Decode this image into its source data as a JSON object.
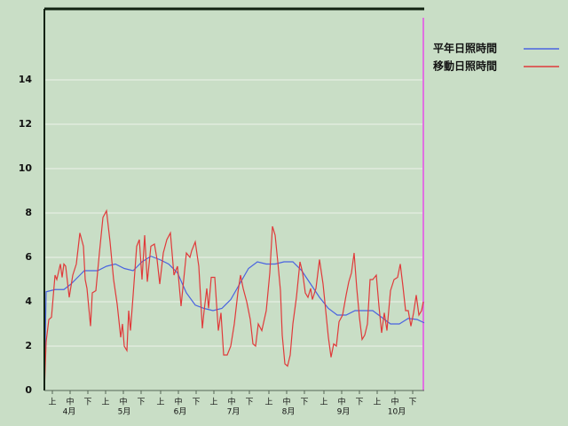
{
  "chart_data": {
    "type": "line",
    "xlim": [
      0,
      214
    ],
    "ylim": [
      0,
      17.2
    ],
    "yticks": [
      0,
      2,
      4,
      6,
      8,
      10,
      12,
      14
    ],
    "xticks": [
      {
        "value": 4.5,
        "label": "上"
      },
      {
        "value": 14.5,
        "label": "中"
      },
      {
        "value": 24.5,
        "label": "下"
      },
      {
        "value": 34.5,
        "label": "上"
      },
      {
        "value": 44.5,
        "label": "中"
      },
      {
        "value": 54.5,
        "label": "下"
      },
      {
        "value": 65.5,
        "label": "上"
      },
      {
        "value": 75.5,
        "label": "中"
      },
      {
        "value": 85.5,
        "label": "下"
      },
      {
        "value": 95.5,
        "label": "上"
      },
      {
        "value": 105.5,
        "label": "中"
      },
      {
        "value": 115.5,
        "label": "下"
      },
      {
        "value": 126.5,
        "label": "上"
      },
      {
        "value": 136.5,
        "label": "中"
      },
      {
        "value": 146.5,
        "label": "下"
      },
      {
        "value": 157.5,
        "label": "上"
      },
      {
        "value": 167.5,
        "label": "中"
      },
      {
        "value": 177.5,
        "label": "下"
      },
      {
        "value": 187.5,
        "label": "上"
      },
      {
        "value": 197.5,
        "label": "中"
      },
      {
        "value": 207.5,
        "label": "下"
      }
    ],
    "month_ticks": [
      {
        "value": 14,
        "label": "4月"
      },
      {
        "value": 45,
        "label": "5月"
      },
      {
        "value": 76.5,
        "label": "6月"
      },
      {
        "value": 106.5,
        "label": "7月"
      },
      {
        "value": 137.5,
        "label": "8月"
      },
      {
        "value": 168.5,
        "label": "9月"
      },
      {
        "value": 198.5,
        "label": "10月"
      }
    ],
    "grid": true,
    "legend": "right",
    "series": [
      {
        "name": "平年日照時間",
        "color": "#4a63e0",
        "x": [
          0,
          1,
          6,
          11,
          15,
          20,
          22.5,
          30,
          35,
          40,
          45,
          50,
          55,
          60,
          65,
          70,
          75,
          80,
          85,
          90,
          95,
          100,
          105,
          110,
          115,
          120,
          125,
          130,
          135,
          140,
          145,
          150,
          155,
          160,
          165,
          170,
          175,
          180,
          185,
          190,
          195,
          200,
          205,
          210,
          214
        ],
        "values": [
          0,
          4.45,
          4.55,
          4.55,
          4.8,
          5.2,
          5.4,
          5.4,
          5.6,
          5.7,
          5.5,
          5.4,
          5.8,
          6.05,
          5.9,
          5.7,
          5.3,
          4.4,
          3.85,
          3.7,
          3.6,
          3.7,
          4.1,
          4.8,
          5.5,
          5.8,
          5.7,
          5.7,
          5.8,
          5.8,
          5.4,
          4.8,
          4.2,
          3.7,
          3.4,
          3.4,
          3.6,
          3.6,
          3.6,
          3.3,
          3.0,
          3.0,
          3.25,
          3.2,
          3.05
        ]
      },
      {
        "name": "移動日照時間",
        "color": "#e03a3a",
        "x": [
          0,
          1,
          2.5,
          4,
          6,
          7,
          9,
          10,
          11,
          12,
          14,
          16,
          18,
          20,
          22,
          23,
          24,
          26,
          27,
          29,
          31,
          33,
          35,
          37,
          39,
          41,
          43,
          44,
          45,
          46.5,
          47.5,
          48.5,
          50,
          52,
          53.5,
          55,
          56.5,
          58,
          60,
          62,
          63.5,
          65,
          67,
          69,
          71,
          73,
          75,
          77,
          78,
          80,
          82,
          83,
          85,
          87,
          89,
          90,
          91.5,
          92.5,
          94,
          96,
          98,
          99.5,
          101,
          103,
          105,
          107,
          109,
          110.5,
          112,
          114,
          116,
          117.5,
          119,
          120.5,
          122.5,
          125,
          127,
          128.5,
          130,
          131.5,
          133,
          134,
          135.5,
          137,
          138.5,
          140,
          142,
          144,
          145.5,
          147,
          148.5,
          150,
          151,
          153,
          155,
          157,
          159,
          160,
          161.5,
          163,
          164.5,
          166,
          168,
          170,
          171.5,
          173,
          174.5,
          176,
          177.5,
          179,
          180.5,
          182,
          183.5,
          185,
          187,
          188.5,
          190,
          191.5,
          193,
          195,
          197,
          199,
          200.5,
          202,
          203.5,
          205,
          206.5,
          208,
          209.5,
          211,
          212.5,
          213.5
        ],
        "values": [
          0,
          2.2,
          3.2,
          3.3,
          5.2,
          5.0,
          5.7,
          5.1,
          5.7,
          5.6,
          4.2,
          5.2,
          5.7,
          7.1,
          6.5,
          5.0,
          4.6,
          2.9,
          4.4,
          4.5,
          6.2,
          7.8,
          8.1,
          6.7,
          5.0,
          3.9,
          2.4,
          3.0,
          2.0,
          1.8,
          3.6,
          2.7,
          4.3,
          6.5,
          6.8,
          5.0,
          7.0,
          4.9,
          6.5,
          6.6,
          5.9,
          4.8,
          6.2,
          6.8,
          7.1,
          5.2,
          5.6,
          3.8,
          4.6,
          6.2,
          6.0,
          6.3,
          6.7,
          5.6,
          2.8,
          3.6,
          4.6,
          3.7,
          5.1,
          5.1,
          2.7,
          3.5,
          1.6,
          1.6,
          2.0,
          3.0,
          4.4,
          5.2,
          4.6,
          4.0,
          3.2,
          2.1,
          2.0,
          3.0,
          2.7,
          3.6,
          5.3,
          7.4,
          7.0,
          5.8,
          4.5,
          2.5,
          1.2,
          1.1,
          1.6,
          3.0,
          4.2,
          5.8,
          5.3,
          4.4,
          4.2,
          4.6,
          4.1,
          4.6,
          5.9,
          4.8,
          3.2,
          2.4,
          1.5,
          2.1,
          2.0,
          3.1,
          3.4,
          4.3,
          4.9,
          5.3,
          6.2,
          4.6,
          3.3,
          2.3,
          2.5,
          3.0,
          5.0,
          5.0,
          5.2,
          3.8,
          2.6,
          3.5,
          2.7,
          4.5,
          5.0,
          5.1,
          5.7,
          4.7,
          3.6,
          3.6,
          2.9,
          3.5,
          4.3,
          3.4,
          3.6,
          4.0
        ]
      }
    ]
  }
}
